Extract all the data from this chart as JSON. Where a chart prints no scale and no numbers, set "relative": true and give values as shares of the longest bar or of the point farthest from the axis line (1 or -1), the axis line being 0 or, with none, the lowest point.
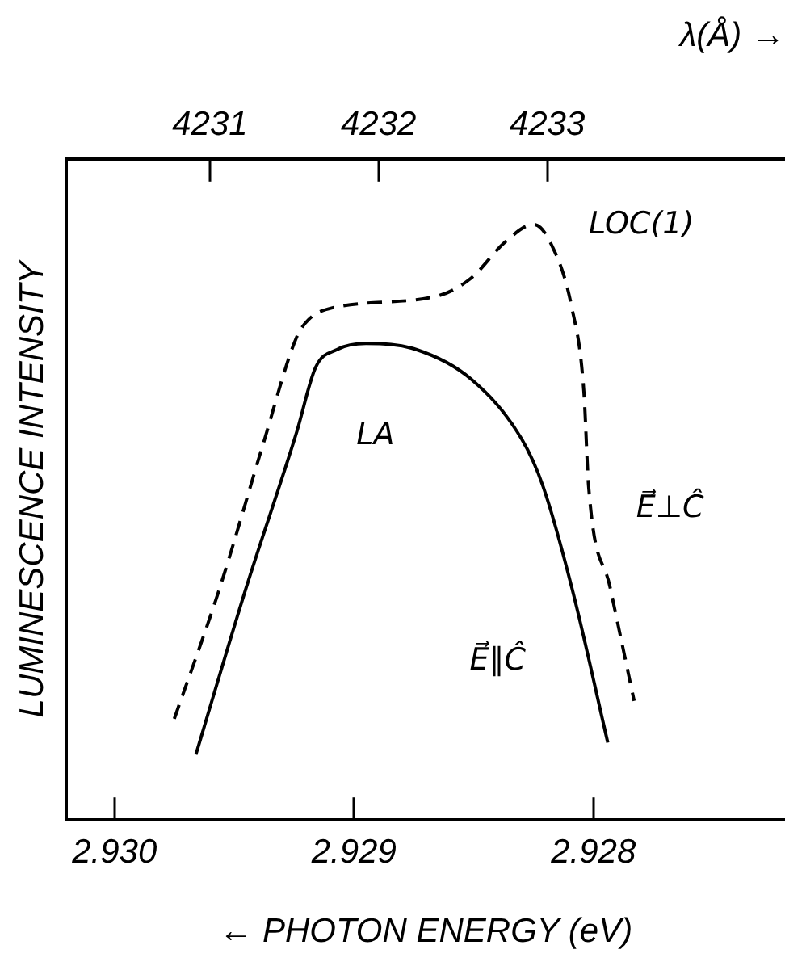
{
  "chart_data": {
    "type": "line",
    "relative": true,
    "xlabel": "← PHOTON ENERGY (eV)",
    "ylabel": "LUMINESCENCE INTENSITY",
    "x2label": "λ(Å) →",
    "xlim": [
      2.9302,
      2.9272
    ],
    "xticks": [
      {
        "value": 2.93,
        "label": "2.930"
      },
      {
        "value": 2.929,
        "label": "2.929"
      },
      {
        "value": 2.928,
        "label": "2.928"
      }
    ],
    "x2lim": [
      4230.15,
      4234.41
    ],
    "x2ticks": [
      4231,
      4232,
      4233
    ],
    "tick_labels": "x",
    "grid": false,
    "legend": false,
    "marker": "none",
    "series": [
      {
        "color": "#000000",
        "line_style": "dashed",
        "x": [
          2.92975,
          2.92956,
          2.92938,
          2.92924,
          2.92919,
          2.92909,
          2.92865,
          2.92851,
          2.92837,
          2.92825,
          2.92818,
          2.92809,
          2.92804,
          2.92802,
          2.92793,
          2.92783
        ],
        "values": [
          0.17,
          0.39,
          0.63,
          0.81,
          0.84,
          0.86,
          0.88,
          0.91,
          0.97,
          1,
          0.97,
          0.86,
          0.72,
          0.56,
          0.39,
          0.2
        ]
      },
      {
        "color": "#000000",
        "line_style": "solid",
        "x": [
          2.92966,
          2.92945,
          2.92924,
          2.92916,
          2.92907,
          2.92895,
          2.92874,
          2.92851,
          2.9283,
          2.92821,
          2.92809,
          2.92794
        ],
        "values": [
          0.11,
          0.39,
          0.65,
          0.76,
          0.79,
          0.8,
          0.79,
          0.74,
          0.64,
          0.56,
          0.39,
          0.13
        ]
      }
    ],
    "annotations": [
      "LOC(1)",
      "LA",
      "E⃗⊥Ĉ",
      "E⃗∥Ĉ"
    ]
  }
}
